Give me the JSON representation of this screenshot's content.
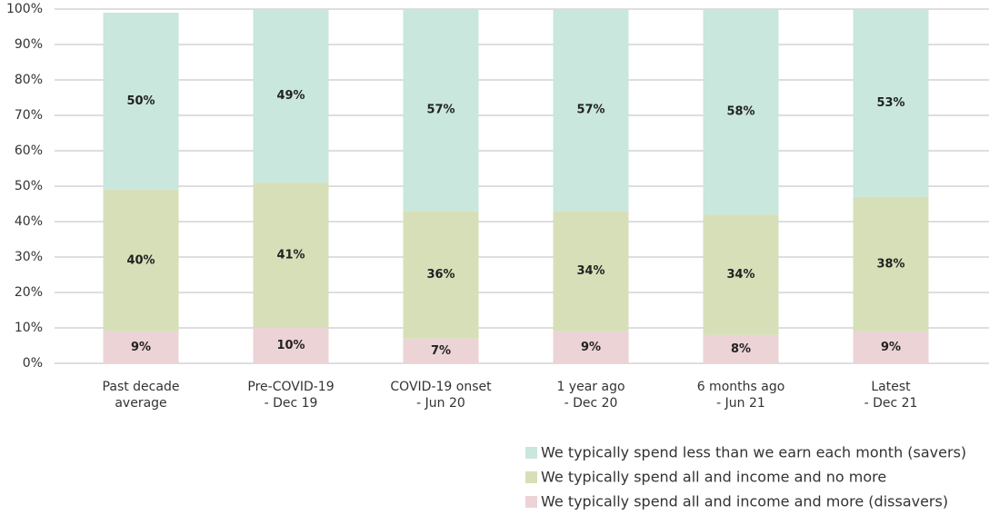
{
  "chart_data": {
    "type": "stacked_bar",
    "categories": [
      [
        "Past decade",
        "average"
      ],
      [
        "Pre-COVID-19",
        "- Dec 19"
      ],
      [
        "COVID-19 onset",
        "- Jun 20"
      ],
      [
        "1 year ago",
        "- Dec 20"
      ],
      [
        "6 months ago",
        "- Jun 21"
      ],
      [
        "Latest",
        "- Dec 21"
      ]
    ],
    "series": [
      {
        "name": "We typically spend less than we earn each month (savers)",
        "color": "#c9e7dc",
        "values": [
          50,
          49,
          57,
          57,
          58,
          53
        ],
        "value_labels": [
          "50%",
          "49%",
          "57%",
          "57%",
          "58%",
          "53%"
        ]
      },
      {
        "name": "We typically spend all and income and no more",
        "color": "#d7dfb9",
        "values": [
          40,
          41,
          36,
          34,
          34,
          38
        ],
        "value_labels": [
          "40%",
          "41%",
          "36%",
          "34%",
          "34%",
          "38%"
        ]
      },
      {
        "name": "We typically spend all and income and more (dissavers)",
        "color": "#ecd3d6",
        "values": [
          9,
          10,
          7,
          9,
          8,
          9
        ],
        "value_labels": [
          "9%",
          "10%",
          "7%",
          "9%",
          "8%",
          "9%"
        ]
      }
    ],
    "ylim": [
      0,
      100
    ],
    "yticks": [
      {
        "value": 0,
        "label": "0%"
      },
      {
        "value": 10,
        "label": "10%"
      },
      {
        "value": 20,
        "label": "20%"
      },
      {
        "value": 30,
        "label": "30%"
      },
      {
        "value": 40,
        "label": "40%"
      },
      {
        "value": 50,
        "label": "50%"
      },
      {
        "value": 60,
        "label": "60%"
      },
      {
        "value": 70,
        "label": "70%"
      },
      {
        "value": 80,
        "label": "80%"
      },
      {
        "value": 90,
        "label": "90%"
      },
      {
        "value": 100,
        "label": "100%"
      }
    ],
    "grid": true,
    "legend": "bottom-right"
  }
}
